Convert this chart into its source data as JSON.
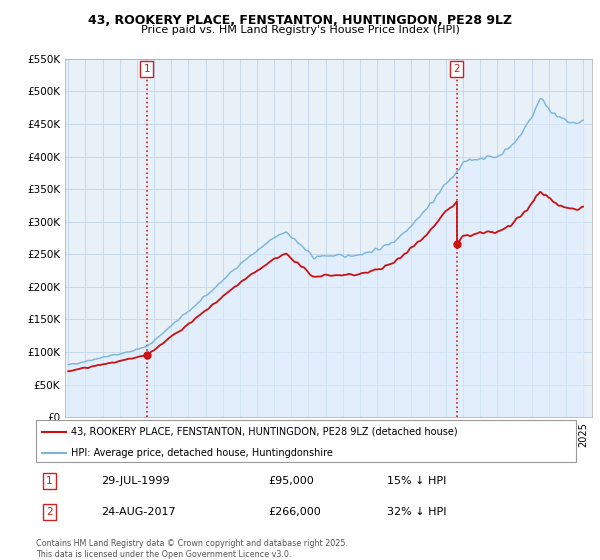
{
  "title1": "43, ROOKERY PLACE, FENSTANTON, HUNTINGDON, PE28 9LZ",
  "title2": "Price paid vs. HM Land Registry's House Price Index (HPI)",
  "legend_line1": "43, ROOKERY PLACE, FENSTANTON, HUNTINGDON, PE28 9LZ (detached house)",
  "legend_line2": "HPI: Average price, detached house, Huntingdonshire",
  "annotation1_label": "1",
  "annotation1_date": "29-JUL-1999",
  "annotation1_price": "£95,000",
  "annotation1_hpi": "15% ↓ HPI",
  "annotation1_year": 1999.57,
  "annotation1_value": 95000,
  "annotation2_label": "2",
  "annotation2_date": "24-AUG-2017",
  "annotation2_price": "£266,000",
  "annotation2_hpi": "32% ↓ HPI",
  "annotation2_year": 2017.65,
  "annotation2_value": 266000,
  "copyright": "Contains HM Land Registry data © Crown copyright and database right 2025.\nThis data is licensed under the Open Government Licence v3.0.",
  "hpi_color": "#7ab4d8",
  "hpi_fill_color": "#ddeeff",
  "price_color": "#cc1111",
  "annotation_color": "#cc2222",
  "background_color": "#ffffff",
  "grid_color": "#c8d8e8",
  "plot_bg_color": "#e8f0f8",
  "ylim": [
    0,
    550000
  ],
  "yticks": [
    0,
    50000,
    100000,
    150000,
    200000,
    250000,
    300000,
    350000,
    400000,
    450000,
    500000,
    550000
  ],
  "xmin": 1994.8,
  "xmax": 2025.5,
  "figwidth": 6.0,
  "figheight": 5.6,
  "dpi": 100
}
